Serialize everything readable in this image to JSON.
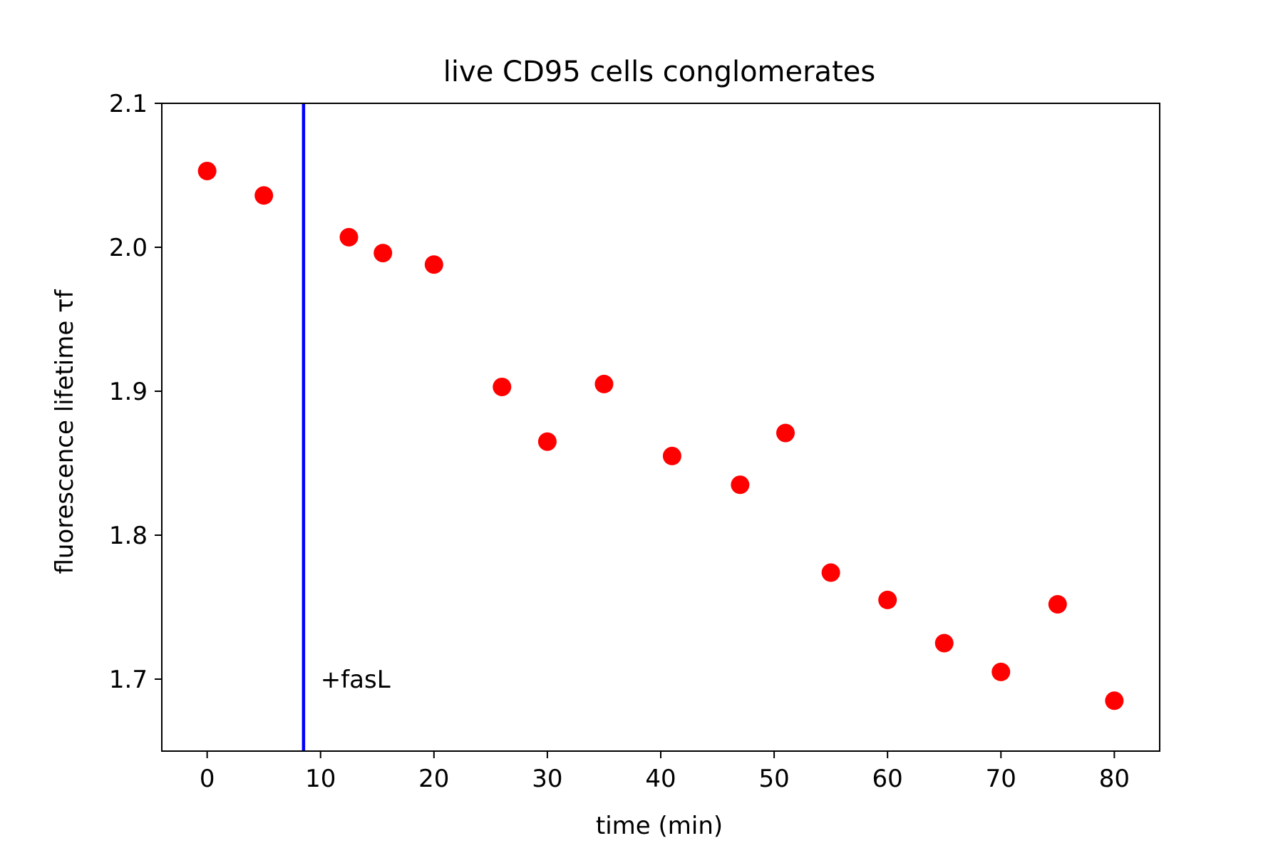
{
  "chart_data": {
    "type": "scatter",
    "title": "live CD95 cells conglomerates",
    "xlabel": "time (min)",
    "ylabel": "fluorescence lifetime τf",
    "xlim": [
      -4,
      84
    ],
    "ylim": [
      1.65,
      2.1
    ],
    "xticks": [
      0,
      10,
      20,
      30,
      40,
      50,
      60,
      70,
      80
    ],
    "xtick_labels": [
      "0",
      "10",
      "20",
      "30",
      "40",
      "50",
      "60",
      "70",
      "80"
    ],
    "yticks": [
      1.7,
      1.8,
      1.9,
      2.0,
      2.1
    ],
    "ytick_labels": [
      "1.7",
      "1.8",
      "1.9",
      "2.0",
      "2.1"
    ],
    "grid": false,
    "series": [
      {
        "color": "#ff0000",
        "marker": "circle",
        "x": [
          0,
          5,
          12.5,
          15.5,
          20,
          26,
          30,
          35,
          41,
          47,
          51,
          55,
          60,
          65,
          70,
          75,
          80
        ],
        "y": [
          2.053,
          2.036,
          2.007,
          1.996,
          1.988,
          1.903,
          1.865,
          1.905,
          1.855,
          1.835,
          1.871,
          1.774,
          1.755,
          1.725,
          1.705,
          1.752,
          1.685
        ]
      }
    ],
    "vline": {
      "x": 8.5,
      "color": "#0000ff"
    },
    "annotations": [
      {
        "text": "+fasL",
        "x": 10,
        "y": 1.7
      }
    ]
  }
}
